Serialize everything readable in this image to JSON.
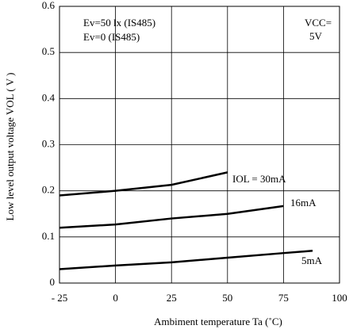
{
  "chart_data": {
    "type": "line",
    "xlabel": "Ambiment temperature Ta (˚C)",
    "ylabel": "Low level output voltage VOL ( V )",
    "annotations": [
      "Ev=50 lx (IS485)",
      "Ev=0  (IS485)",
      "VCC=",
      "5V"
    ],
    "xlim": [
      -25,
      100
    ],
    "ylim": [
      0,
      0.6
    ],
    "xticks": [
      {
        "value": -25,
        "label": "- 25"
      },
      0,
      25,
      50,
      75,
      100
    ],
    "yticks": [
      0,
      0.1,
      0.2,
      0.3,
      0.4,
      0.5,
      0.6
    ],
    "grid": true,
    "series": [
      {
        "name": "IOL = 30mA",
        "color": "#000000",
        "x": [
          -25,
          0,
          25,
          50
        ],
        "values": [
          0.19,
          0.2,
          0.213,
          0.24
        ]
      },
      {
        "name": "16mA",
        "color": "#000000",
        "x": [
          -25,
          0,
          25,
          50,
          75
        ],
        "values": [
          0.12,
          0.127,
          0.14,
          0.15,
          0.167
        ]
      },
      {
        "name": "5mA",
        "color": "#000000",
        "x": [
          -25,
          0,
          25,
          50,
          75,
          88
        ],
        "values": [
          0.03,
          0.038,
          0.045,
          0.055,
          0.065,
          0.07
        ]
      }
    ]
  }
}
